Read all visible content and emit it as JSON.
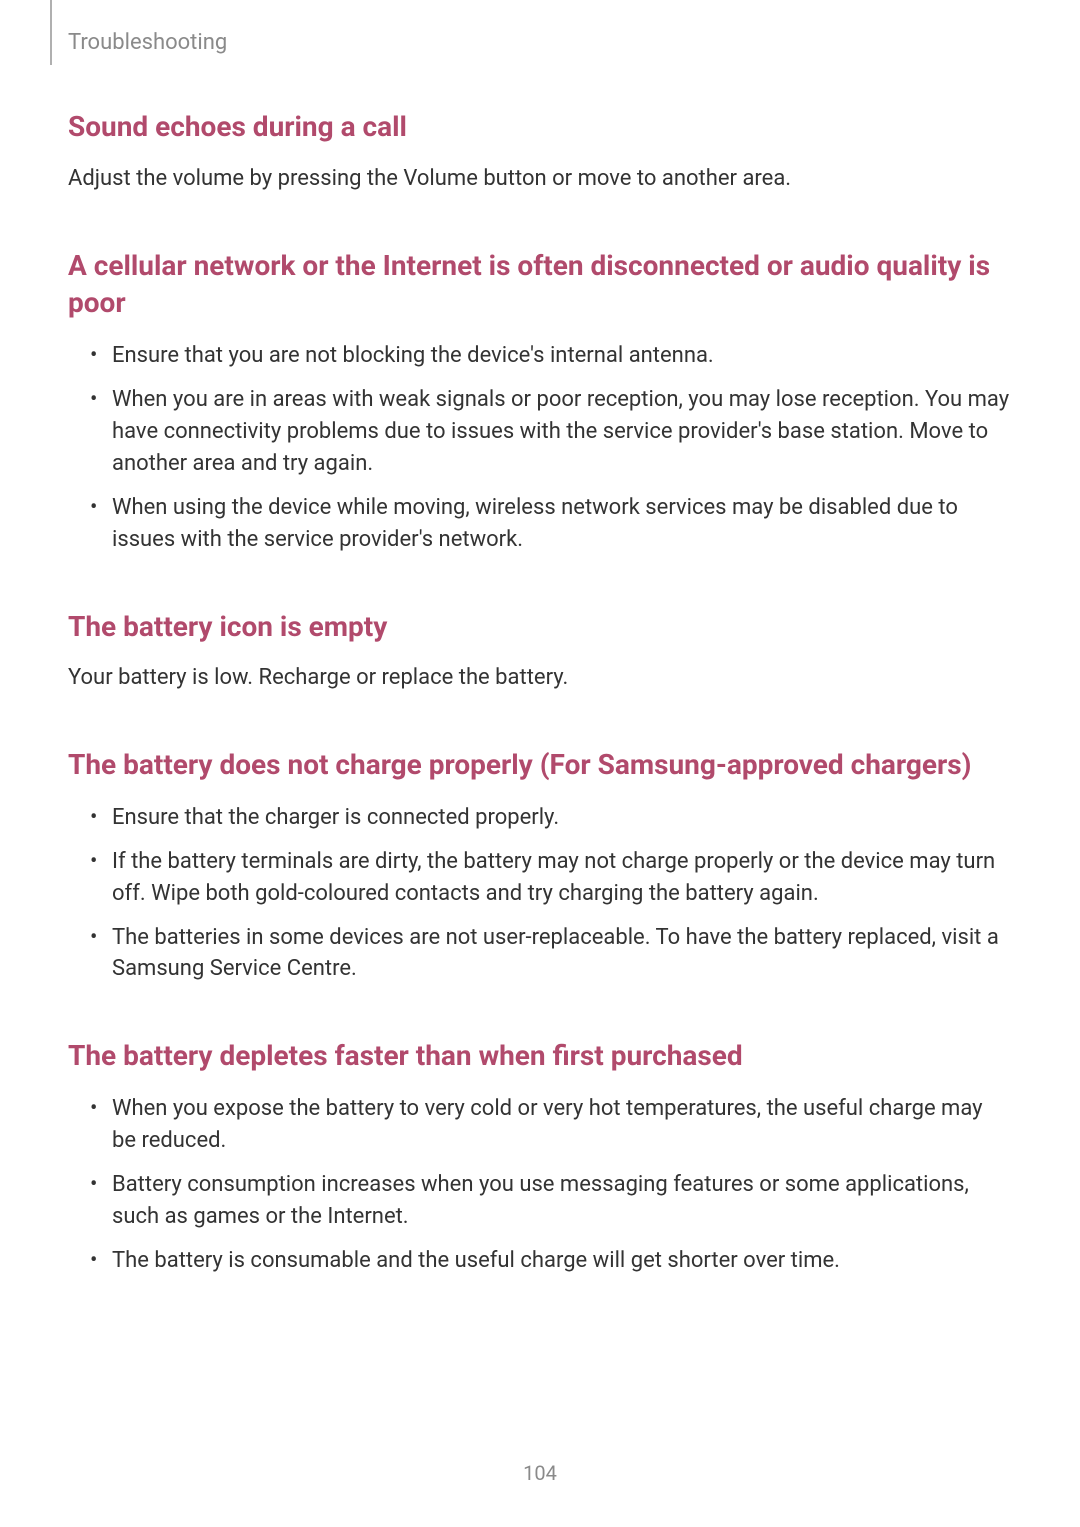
{
  "page": {
    "breadcrumb": "Troubleshooting",
    "page_number": "104"
  },
  "colors": {
    "heading": "#b14a6c",
    "body_text": "#333333",
    "muted_text": "#8a8a8a",
    "background": "#ffffff",
    "rule": "#b0b0b0"
  },
  "typography": {
    "heading_fontsize_pt": 21,
    "heading_weight": 700,
    "body_fontsize_pt": 16,
    "body_weight": 400,
    "breadcrumb_fontsize_pt": 16
  },
  "sections": [
    {
      "heading": "Sound echoes during a call",
      "para": "Adjust the volume by pressing the Volume button or move to another area."
    },
    {
      "heading": "A cellular network or the Internet is often disconnected or audio quality is poor",
      "bullets": [
        "Ensure that you are not blocking the device's internal antenna.",
        "When you are in areas with weak signals or poor reception, you may lose reception. You may have connectivity problems due to issues with the service provider's base station. Move to another area and try again.",
        "When using the device while moving, wireless network services may be disabled due to issues with the service provider's network."
      ]
    },
    {
      "heading": "The battery icon is empty",
      "para": "Your battery is low. Recharge or replace the battery."
    },
    {
      "heading": "The battery does not charge properly (For Samsung-approved chargers)",
      "bullets": [
        "Ensure that the charger is connected properly.",
        "If the battery terminals are dirty, the battery may not charge properly or the device may turn off. Wipe both gold-coloured contacts and try charging the battery again.",
        "The batteries in some devices are not user-replaceable. To have the battery replaced, visit a Samsung Service Centre."
      ]
    },
    {
      "heading": "The battery depletes faster than when first purchased",
      "bullets": [
        "When you expose the battery to very cold or very hot temperatures, the useful charge may be reduced.",
        "Battery consumption increases when you use messaging features or some applications, such as games or the Internet.",
        "The battery is consumable and the useful charge will get shorter over time."
      ]
    }
  ]
}
